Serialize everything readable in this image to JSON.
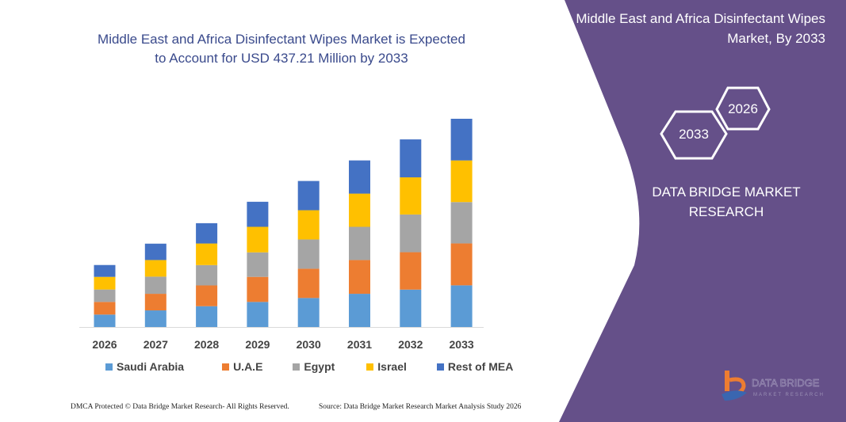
{
  "chart_data": {
    "type": "bar",
    "stacked": true,
    "title": "Middle East and Africa Disinfectant Wipes Market is Expected to Account for USD 437.21 Million by 2033",
    "xlabel": "",
    "ylabel": "",
    "categories": [
      "2026",
      "2027",
      "2028",
      "2029",
      "2030",
      "2031",
      "2032",
      "2033"
    ],
    "series": [
      {
        "name": "Saudi Arabia",
        "color": "#5b9bd5",
        "values": [
          15.7,
          21,
          26.3,
          31.7,
          36.7,
          42,
          47.3,
          52.7
        ]
      },
      {
        "name": "U.A.E",
        "color": "#ed7d31",
        "values": [
          16,
          21,
          26.3,
          31.7,
          37,
          42.7,
          47.3,
          53
        ]
      },
      {
        "name": "Egypt",
        "color": "#a5a5a5",
        "values": [
          15.7,
          21.7,
          25.7,
          31,
          37,
          42,
          47.7,
          52.3
        ]
      },
      {
        "name": "Israel",
        "color": "#ffc000",
        "values": [
          16,
          21,
          27.3,
          32.3,
          37,
          42,
          47,
          52.7
        ]
      },
      {
        "name": "Rest of MEA",
        "color": "#4472c4",
        "values": [
          15,
          20.7,
          25.7,
          31.7,
          37,
          42,
          48,
          52.7
        ]
      }
    ],
    "ylim": [
      0,
      263
    ],
    "grid": false,
    "y_axis_visible": false,
    "legend": "bottom"
  },
  "panel": {
    "title": "Middle East and Africa Disinfectant Wipes Market, By 2033",
    "hex_years": [
      "2033",
      "2026"
    ],
    "brand": "DATA BRIDGE MARKET RESEARCH",
    "color": "#655089"
  },
  "footer": {
    "left": "DMCA Protected © Data Bridge Market Research-  All Rights Reserved.",
    "right": "Source:  Data Bridge Market Research  Market Analysis Study 2026"
  },
  "logo": {
    "text": "DATA BRIDGE",
    "subtext": "MARKET RESEARCH"
  }
}
